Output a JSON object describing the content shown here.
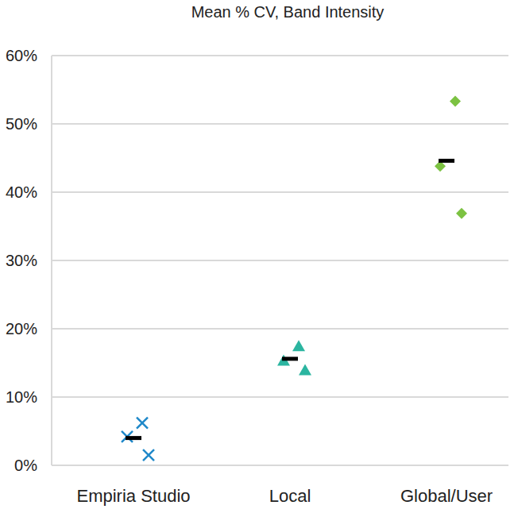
{
  "chart_data": {
    "type": "strip",
    "title": "Mean % CV, Band Intensity",
    "categories": [
      "Empiria Studio",
      "Local",
      "Global/User"
    ],
    "series": [
      {
        "color": "#1f88c9",
        "marker": "x",
        "values": [
          4.2,
          6.2,
          1.5
        ],
        "mean": 4.0
      },
      {
        "color": "#2bb5a0",
        "marker": "triangle",
        "values": [
          15.3,
          17.4,
          13.9
        ],
        "mean": 15.6
      },
      {
        "color": "#7cc242",
        "marker": "diamond",
        "values": [
          43.8,
          53.3,
          36.9
        ],
        "mean": 44.6
      }
    ],
    "ylim": [
      0,
      60
    ],
    "yticks": [
      {
        "value": 0,
        "label": "0%"
      },
      {
        "value": 10,
        "label": "10%"
      },
      {
        "value": 20,
        "label": "20%"
      },
      {
        "value": 30,
        "label": "30%"
      },
      {
        "value": 40,
        "label": "40%"
      },
      {
        "value": 50,
        "label": "50%"
      },
      {
        "value": 60,
        "label": "60%"
      }
    ],
    "grid": true
  }
}
